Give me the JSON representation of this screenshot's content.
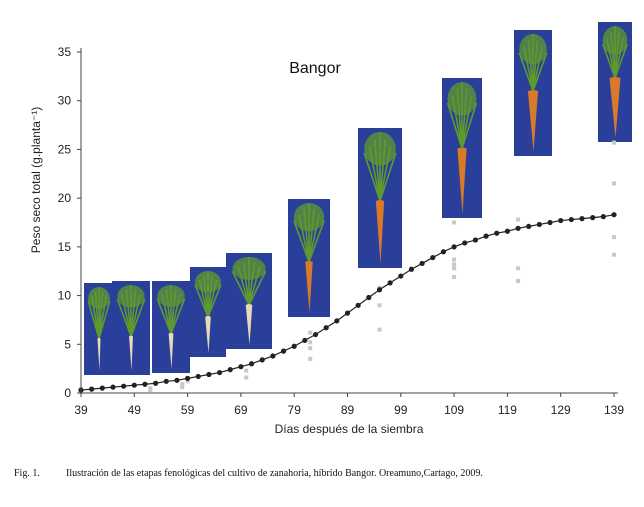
{
  "chart_data": {
    "type": "scatter",
    "title": "Bangor",
    "xlabel": "Días después de la siembra",
    "ylabel": "Peso seco total (g.planta⁻¹)",
    "xlim": [
      39,
      139
    ],
    "ylim": [
      0,
      35
    ],
    "x_ticks": [
      "39",
      "49",
      "59",
      "69",
      "79",
      "89",
      "99",
      "109",
      "119",
      "129",
      "139"
    ],
    "y_ticks": [
      "0",
      "5",
      "10",
      "15",
      "20",
      "25",
      "30",
      "35"
    ],
    "grid": false,
    "series": [
      {
        "kind": "fitted-curve",
        "color": "#222222",
        "x": [
          39,
          41,
          43,
          45,
          47,
          49,
          51,
          53,
          55,
          57,
          59,
          61,
          63,
          65,
          67,
          69,
          71,
          73,
          75,
          77,
          79,
          81,
          83,
          85,
          87,
          89,
          91,
          93,
          95,
          97,
          99,
          101,
          103,
          105,
          107,
          109,
          111,
          113,
          115,
          117,
          119,
          121,
          123,
          125,
          127,
          129,
          131,
          133,
          135,
          137,
          139
        ],
        "y": [
          0.3,
          0.4,
          0.5,
          0.6,
          0.7,
          0.8,
          0.9,
          1.0,
          1.2,
          1.3,
          1.5,
          1.7,
          1.9,
          2.1,
          2.4,
          2.7,
          3.0,
          3.4,
          3.8,
          4.3,
          4.8,
          5.4,
          6.0,
          6.7,
          7.4,
          8.2,
          9.0,
          9.8,
          10.6,
          11.3,
          12.0,
          12.7,
          13.3,
          13.9,
          14.5,
          15.0,
          15.4,
          15.7,
          16.1,
          16.4,
          16.6,
          16.9,
          17.1,
          17.3,
          17.5,
          17.7,
          17.8,
          17.9,
          18.0,
          18.1,
          18.3
        ]
      },
      {
        "kind": "observations",
        "color": "#c8c8c8",
        "x": [
          39,
          39,
          52,
          52,
          58,
          58,
          59,
          70,
          70,
          82,
          82,
          82,
          82,
          95,
          95,
          95,
          109,
          109,
          109,
          109,
          109,
          121,
          121,
          121,
          139,
          139,
          139,
          139
        ],
        "y": [
          0.2,
          0.4,
          0.3,
          0.5,
          0.6,
          0.9,
          1.2,
          1.6,
          2.3,
          3.5,
          4.6,
          5.2,
          6.2,
          6.5,
          9.0,
          10.8,
          11.9,
          12.8,
          13.2,
          13.7,
          17.5,
          11.5,
          12.8,
          17.8,
          14.2,
          16.0,
          21.5,
          25.7
        ]
      }
    ],
    "images": [
      "carrot-stage-1",
      "carrot-stage-2",
      "carrot-stage-3",
      "carrot-stage-4",
      "carrot-stage-5",
      "carrot-stage-6",
      "carrot-stage-7",
      "carrot-stage-8",
      "carrot-stage-9",
      "carrot-stage-10"
    ]
  },
  "caption": {
    "number": "Fig. 1.",
    "text": "Ilustración de las etapas fenológicas del cultivo de zanahoria, híbrido Bangor. Oreamuno,Cartago, 2009."
  },
  "colors": {
    "photo_background": "#2a3f9a",
    "leaf": "#5f9a2c",
    "root": "#d9792a",
    "curve": "#222222",
    "observation": "#c8c8c8"
  }
}
